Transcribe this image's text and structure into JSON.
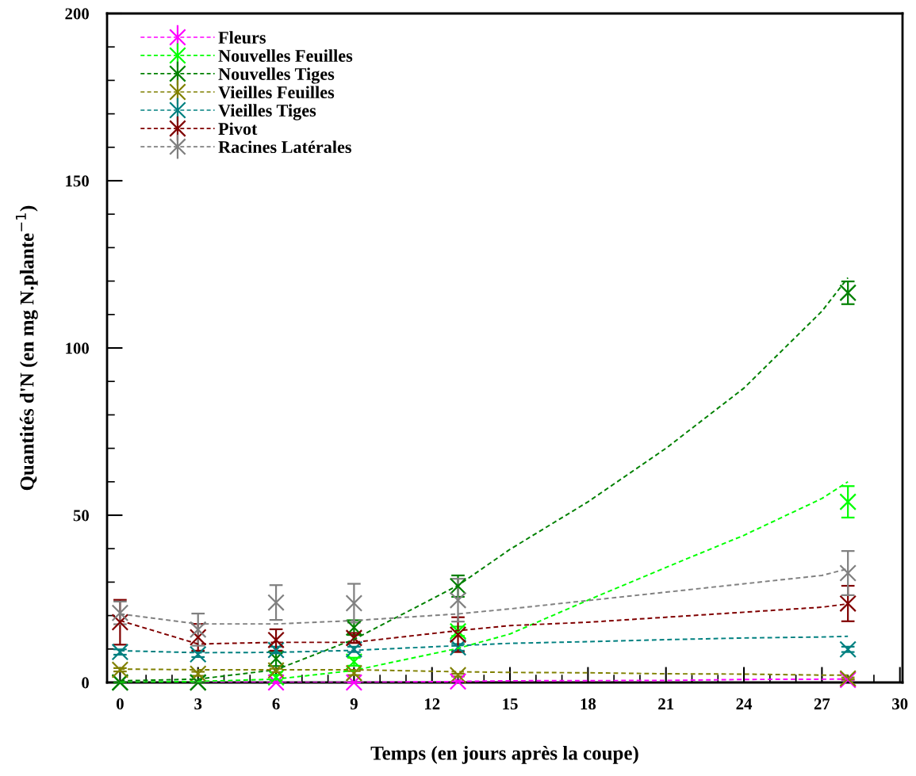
{
  "chart_data": {
    "type": "scatter",
    "xlabel": "Temps (en jours après la coupe)",
    "ylabel": "Quantités d'N (en mg N.plante$^{−1}$)",
    "xlim": [
      -0.5,
      30.1
    ],
    "ylim": [
      0,
      200
    ],
    "xticks": [
      0,
      {
        "value": 1,
        "label": null
      },
      {
        "value": 2,
        "label": null
      },
      3,
      {
        "value": 4,
        "label": null
      },
      {
        "value": 5,
        "label": null
      },
      6,
      {
        "value": 7,
        "label": null
      },
      {
        "value": 8,
        "label": null
      },
      9,
      {
        "value": 10,
        "label": null
      },
      {
        "value": 11,
        "label": null
      },
      12,
      {
        "value": 13,
        "label": null
      },
      {
        "value": 14,
        "label": null
      },
      15,
      {
        "value": 16,
        "label": null
      },
      {
        "value": 17,
        "label": null
      },
      18,
      {
        "value": 19,
        "label": null
      },
      {
        "value": 20,
        "label": null
      },
      21,
      {
        "value": 22,
        "label": null
      },
      {
        "value": 23,
        "label": null
      },
      24,
      {
        "value": 25,
        "label": null
      },
      {
        "value": 26,
        "label": null
      },
      27,
      {
        "value": 28,
        "label": null
      },
      {
        "value": 29,
        "label": null
      },
      30
    ],
    "yticks": [
      0,
      {
        "value": 10,
        "label": null
      },
      {
        "value": 20,
        "label": null
      },
      {
        "value": 30,
        "label": null
      },
      {
        "value": 40,
        "label": null
      },
      50,
      {
        "value": 60,
        "label": null
      },
      {
        "value": 70,
        "label": null
      },
      {
        "value": 80,
        "label": null
      },
      {
        "value": 90,
        "label": null
      },
      100,
      {
        "value": 110,
        "label": null
      },
      {
        "value": 120,
        "label": null
      },
      {
        "value": 130,
        "label": null
      },
      {
        "value": 140,
        "label": null
      },
      150,
      {
        "value": 160,
        "label": null
      },
      {
        "value": 170,
        "label": null
      },
      {
        "value": 180,
        "label": null
      },
      {
        "value": 190,
        "label": null
      },
      200
    ],
    "grid": false,
    "legend": "top left",
    "series": [
      {
        "name": "Fleurs",
        "marker": "cross",
        "color": "#ff00ff",
        "x": [
          0,
          3,
          6,
          9,
          13,
          28
        ],
        "values": [
          0,
          0,
          0,
          0,
          0.3,
          0.8
        ],
        "errors": [
          null,
          null,
          null,
          null,
          null,
          null
        ]
      },
      {
        "name": "Nouvelles Feuilles",
        "marker": "cross",
        "color": "#00ff00",
        "x": [
          0,
          3,
          6,
          9,
          13,
          28
        ],
        "values": [
          0,
          0,
          1.5,
          6.2,
          15.3,
          54
        ],
        "errors": [
          null,
          null,
          0.8,
          1.2,
          1.4,
          4.7
        ]
      },
      {
        "name": "Nouvelles Tiges",
        "marker": "cross",
        "color": "#008000",
        "x": [
          0,
          3,
          6,
          9,
          13,
          28
        ],
        "values": [
          0,
          0,
          7.1,
          16.4,
          28.8,
          116.5
        ],
        "errors": [
          null,
          null,
          2.2,
          2.2,
          3.2,
          3.4
        ]
      },
      {
        "name": "Vieilles Feuilles",
        "marker": "cross",
        "color": "#808000",
        "x": [
          0,
          3,
          6,
          9,
          13,
          28
        ],
        "values": [
          3.8,
          2.6,
          3.6,
          2.8,
          2.2,
          1.2
        ],
        "errors": [
          0.5,
          0.6,
          0.5,
          0.6,
          0.4,
          0.3
        ]
      },
      {
        "name": "Vieilles Tiges",
        "marker": "cross",
        "color": "#008080",
        "x": [
          0,
          3,
          6,
          9,
          13,
          28
        ],
        "values": [
          9.1,
          8.4,
          9.7,
          9.9,
          10.5,
          9.9
        ],
        "errors": [
          0.8,
          0.8,
          1,
          0.8,
          1,
          0.8
        ]
      },
      {
        "name": "Pivot",
        "marker": "cross",
        "color": "#800000",
        "x": [
          0,
          3,
          6,
          9,
          13,
          28
        ],
        "values": [
          18,
          13.5,
          12.7,
          13.3,
          14.3,
          23.6
        ],
        "errors": [
          6.7,
          4,
          3.2,
          1.5,
          5.2,
          5.3
        ]
      },
      {
        "name": "Racines Latérales",
        "marker": "cross",
        "color": "#808080",
        "x": [
          0,
          3,
          6,
          9,
          13,
          28
        ],
        "values": [
          20.8,
          15.8,
          23.9,
          23.7,
          24.6,
          32.7
        ],
        "errors": [
          3.4,
          4.8,
          5.2,
          5.8,
          6.4,
          6.6
        ]
      },
      {
        "type": "line",
        "line_style": "dashed",
        "color": "#ff00ff",
        "x": [
          0,
          3,
          6,
          9,
          13,
          15,
          21,
          24,
          28
        ],
        "values": [
          0,
          0,
          0,
          0,
          0.3,
          0.5,
          0.6,
          0.9,
          1
        ]
      },
      {
        "type": "line",
        "line_style": "dashed",
        "color": "#00ff00",
        "x": [
          0,
          3,
          6,
          9,
          13,
          15,
          18,
          21,
          24,
          27,
          28
        ],
        "values": [
          0,
          0.3,
          1,
          3.6,
          10.2,
          14.5,
          24.6,
          34.4,
          44,
          55,
          60
        ]
      },
      {
        "type": "line",
        "line_style": "dashed",
        "color": "#008000",
        "x": [
          0,
          3,
          6,
          9,
          13,
          15,
          18,
          21,
          24,
          27,
          28
        ],
        "values": [
          0.5,
          1,
          3.8,
          12.9,
          29,
          39.8,
          54,
          70,
          88,
          111,
          121
        ]
      },
      {
        "type": "line",
        "line_style": "dashed",
        "color": "#808000",
        "x": [
          0,
          3,
          6,
          9,
          13,
          15,
          18,
          21,
          24,
          27,
          28
        ],
        "values": [
          4,
          3.8,
          3.8,
          3.8,
          3.2,
          3,
          2.9,
          2.6,
          2.5,
          2.2,
          2.2
        ]
      },
      {
        "type": "line",
        "line_style": "dashed",
        "color": "#008080",
        "x": [
          0,
          3,
          6,
          9,
          13,
          15,
          18,
          21,
          24,
          27,
          28
        ],
        "values": [
          9.5,
          8.9,
          9,
          9.6,
          11,
          11.7,
          12.2,
          12.8,
          13.3,
          13.6,
          13.8
        ]
      },
      {
        "type": "line",
        "line_style": "dashed",
        "color": "#800000",
        "x": [
          0,
          3,
          6,
          9,
          13,
          15,
          18,
          21,
          24,
          27,
          28
        ],
        "values": [
          18.5,
          11.5,
          12,
          12,
          15.5,
          17,
          18,
          19.5,
          21,
          22.5,
          23.5
        ]
      },
      {
        "type": "line",
        "line_style": "dashed",
        "color": "#808080",
        "x": [
          0,
          3,
          6,
          9,
          13,
          15,
          18,
          21,
          24,
          27,
          28
        ],
        "values": [
          20.5,
          17.5,
          17.5,
          18.5,
          20.5,
          22,
          24.5,
          27,
          29.5,
          32,
          34
        ]
      }
    ]
  }
}
